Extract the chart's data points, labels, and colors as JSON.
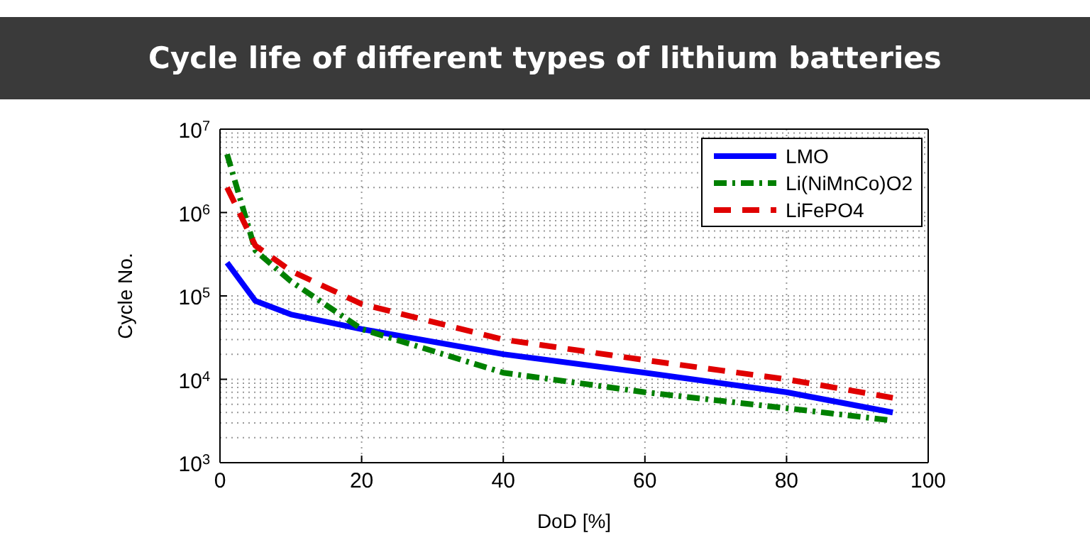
{
  "chart_data": {
    "type": "line",
    "title": "Cycle life of different types of lithium batteries",
    "xlabel": "DoD [%]",
    "ylabel": "Cycle No.",
    "x": [
      1,
      5,
      10,
      20,
      40,
      60,
      80,
      95
    ],
    "series": [
      {
        "name": "LMO",
        "color": "#0000ff",
        "line_style": "solid",
        "values": [
          250000,
          87000,
          60000,
          40000,
          20000,
          12000,
          7000,
          4000
        ]
      },
      {
        "name": "Li(NiMnCo)O2",
        "color": "#008000",
        "line_style": "dashdot",
        "values": [
          5000000,
          350000,
          150000,
          40000,
          12000,
          7000,
          4500,
          3200
        ]
      },
      {
        "name": "LiFePO4",
        "color": "#e00000",
        "line_style": "dashed",
        "values": [
          2000000,
          400000,
          200000,
          80000,
          30000,
          17000,
          10000,
          6000
        ]
      }
    ],
    "xlim": [
      0,
      100
    ],
    "xticks": [
      0,
      20,
      40,
      60,
      80,
      100
    ],
    "ylim": [
      1000,
      10000000
    ],
    "yticks": [
      {
        "value": 1000,
        "label": "10$^{3}$"
      },
      {
        "value": 10000,
        "label": "10$^{4}$"
      },
      {
        "value": 100000,
        "label": "10$^{5}$"
      },
      {
        "value": 1000000,
        "label": "10$^{6}$"
      },
      {
        "value": 10000000,
        "label": "10$^{7}$"
      }
    ],
    "log": "y",
    "grid": true,
    "legend": "top right",
    "marker": "none"
  }
}
